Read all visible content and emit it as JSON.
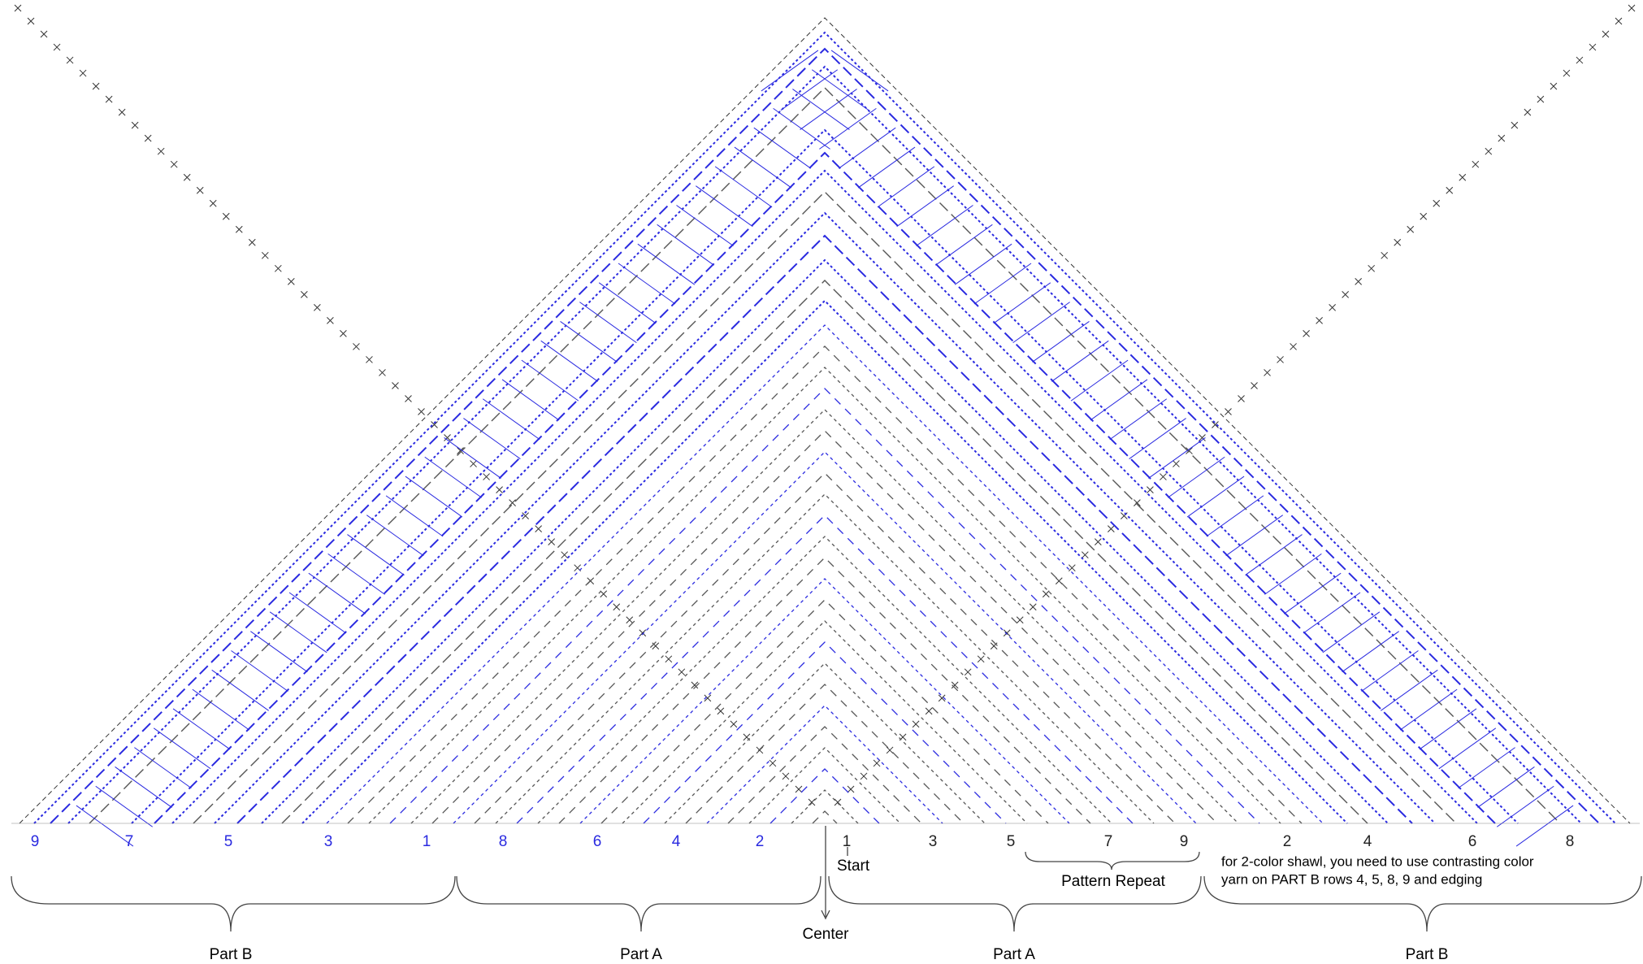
{
  "row_labels": {
    "left": [
      "9",
      "7",
      "5",
      "3",
      "1",
      "8",
      "6",
      "4",
      "2"
    ],
    "right": [
      "1",
      "3",
      "5",
      "7",
      "9",
      "2",
      "4",
      "6",
      "8"
    ]
  },
  "start": "Start",
  "center": "Center",
  "pattern_repeat": "Pattern Repeat",
  "note": [
    "for 2-color shawl, you need to use contrasting color",
    "yarn on PART B rows 4, 5, 8, 9 and edging"
  ],
  "parts": [
    "Part B",
    "Part A",
    "Part A",
    "Part B"
  ]
}
